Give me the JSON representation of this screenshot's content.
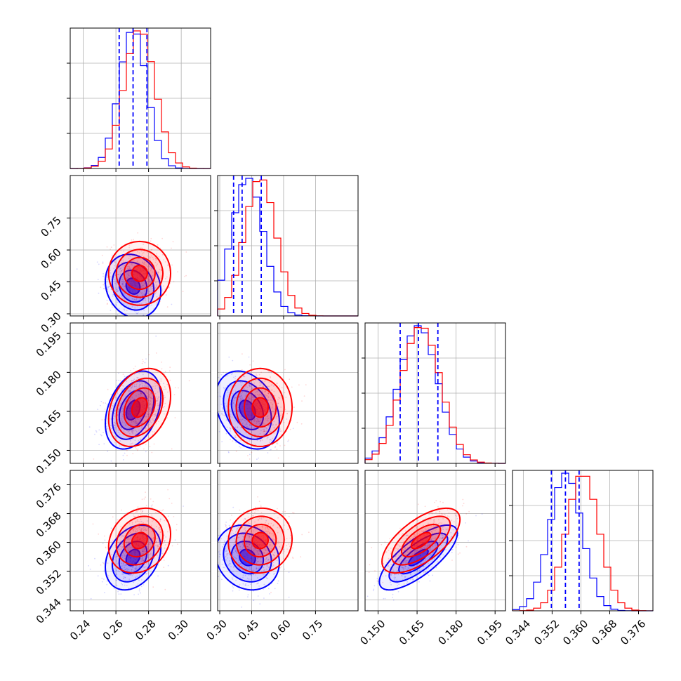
{
  "chart_data": {
    "type": "scatter",
    "subtype": "corner",
    "parameters": [
      {
        "range": [
          0.232,
          0.318
        ],
        "ticks": [
          "0.24",
          "0.26",
          "0.28",
          "0.30"
        ]
      },
      {
        "range": [
          0.29,
          0.95
        ],
        "ticks": [
          "0.30",
          "0.45",
          "0.60",
          "0.75"
        ]
      },
      {
        "range": [
          0.145,
          0.199
        ],
        "ticks": [
          "0.150",
          "0.165",
          "0.180",
          "0.195"
        ]
      },
      {
        "range": [
          0.341,
          0.38
        ],
        "ticks": [
          "0.344",
          "0.352",
          "0.360",
          "0.368",
          "0.376"
        ]
      }
    ],
    "colors": {
      "blue": "#0000ff",
      "red": "#ff0000"
    },
    "grid": true,
    "series": [
      {
        "color": "blue",
        "mean": [
          0.2705,
          0.43,
          0.1655,
          0.3558
        ],
        "std": [
          0.0085,
          0.075,
          0.0075,
          0.0045
        ],
        "quantiles": [
          [
            0.262,
            0.2705,
            0.279
          ],
          [
            0.365,
            0.405,
            0.495
          ],
          [
            0.1585,
            0.1655,
            0.173
          ],
          [
            0.3518,
            0.3557,
            0.3595
          ]
        ],
        "corr": [
          [
            1,
            -0.15,
            0.35,
            0.3
          ],
          [
            -0.15,
            1,
            -0.3,
            -0.15
          ],
          [
            0.35,
            -0.3,
            1,
            0.75
          ],
          [
            0.3,
            -0.15,
            0.75,
            1
          ]
        ],
        "hist_peak_bin": [
          null,
          null,
          null,
          null
        ]
      },
      {
        "color": "red",
        "mean": [
          0.2745,
          0.49,
          0.1665,
          0.3605
        ],
        "std": [
          0.0095,
          0.075,
          0.0075,
          0.0045
        ],
        "corr": [
          [
            1,
            0.0,
            0.3,
            0.2
          ],
          [
            0.0,
            1,
            0.0,
            0.05
          ],
          [
            0.3,
            0.0,
            1,
            0.65
          ],
          [
            0.2,
            0.05,
            0.65,
            1
          ]
        ]
      }
    ]
  }
}
